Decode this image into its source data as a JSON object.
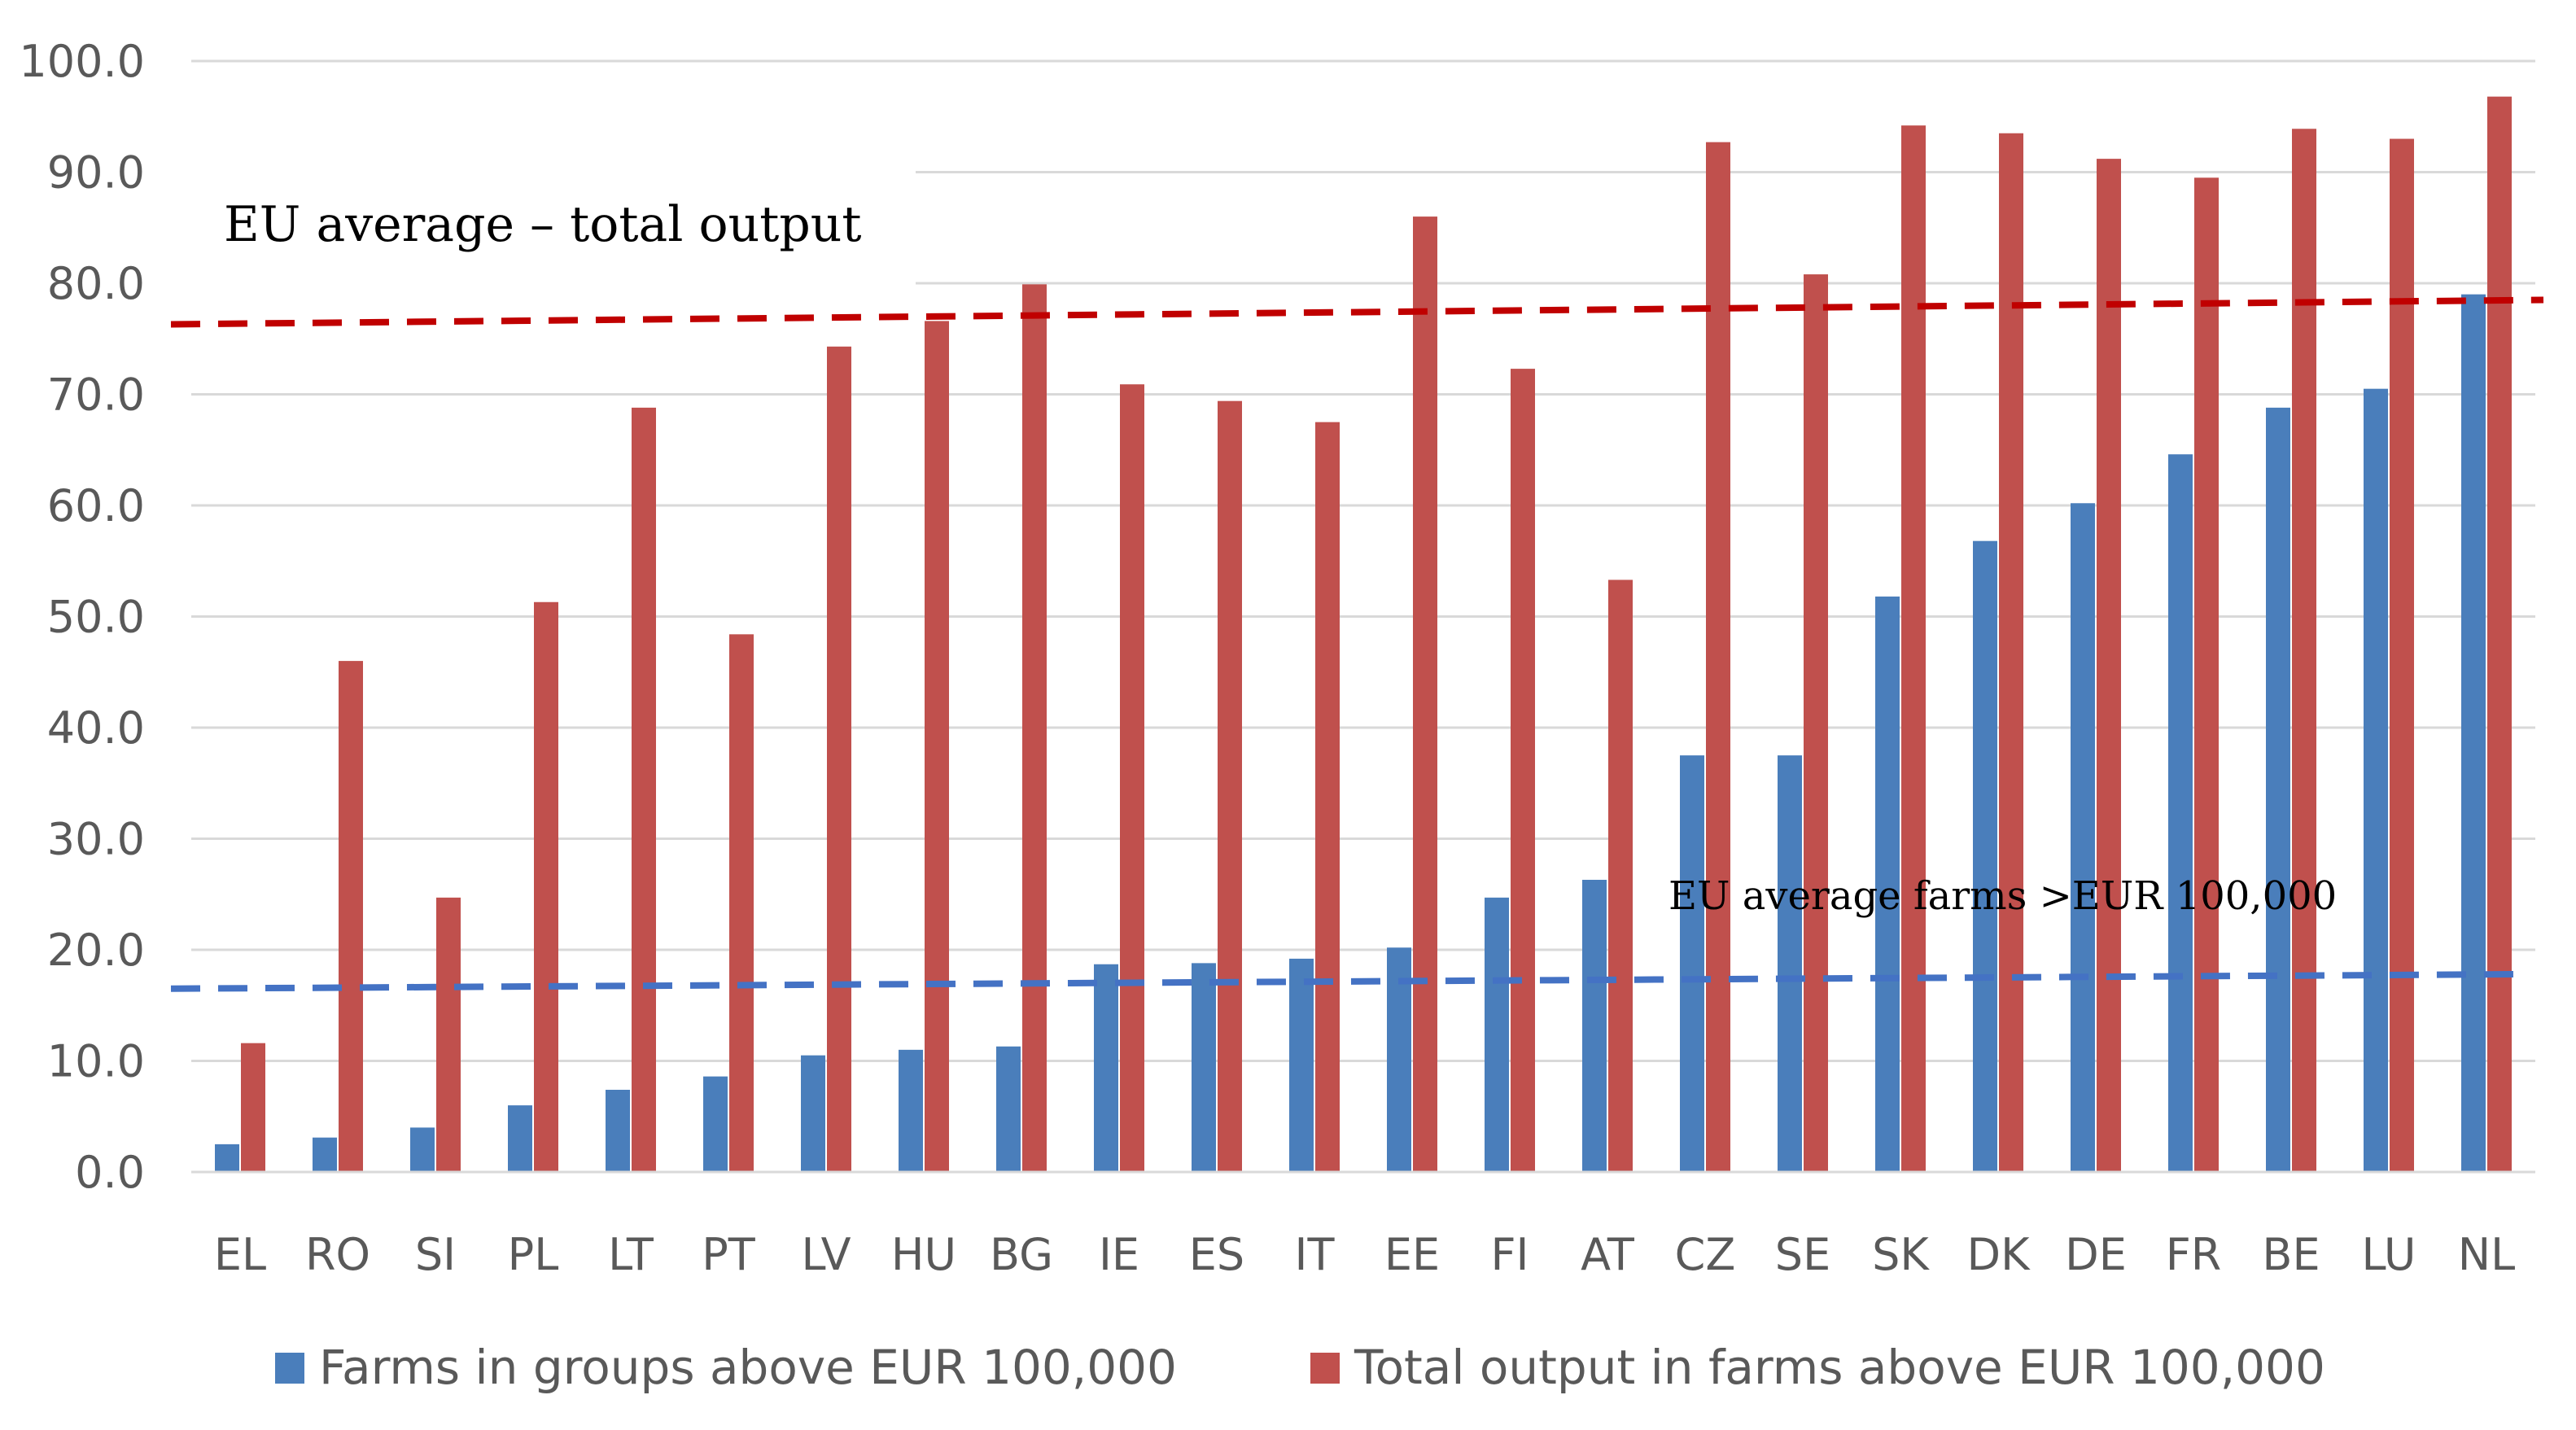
{
  "chart_data": {
    "type": "bar",
    "title": "",
    "xlabel": "",
    "ylabel": "",
    "ylim": [
      0,
      100
    ],
    "yticks": [
      0,
      10,
      20,
      30,
      40,
      50,
      60,
      70,
      80,
      90,
      100
    ],
    "ytick_labels": [
      "0.0",
      "10.0",
      "20.0",
      "30.0",
      "40.0",
      "50.0",
      "60.0",
      "70.0",
      "80.0",
      "90.0",
      "100.0"
    ],
    "gridlines": true,
    "legend_position": "bottom",
    "categories": [
      "EL",
      "RO",
      "SI",
      "PL",
      "LT",
      "PT",
      "LV",
      "HU",
      "BG",
      "IE",
      "ES",
      "IT",
      "EE",
      "FI",
      "AT",
      "CZ",
      "SE",
      "SK",
      "DK",
      "DE",
      "FR",
      "BE",
      "LU",
      "NL"
    ],
    "series": [
      {
        "name": "Farms in groups above EUR 100,000",
        "color": "#4a7ebb",
        "values": [
          2.5,
          3.1,
          4.0,
          6.0,
          7.4,
          8.6,
          10.5,
          11.0,
          11.3,
          18.7,
          18.8,
          19.2,
          20.2,
          24.7,
          26.3,
          37.5,
          37.5,
          51.8,
          56.8,
          60.2,
          64.6,
          68.8,
          70.5,
          79.0
        ]
      },
      {
        "name": "Total output  in farms above EUR 100,000",
        "color": "#c0504d",
        "values": [
          11.6,
          46.0,
          24.7,
          51.3,
          68.8,
          48.4,
          74.3,
          76.6,
          79.9,
          70.9,
          69.4,
          67.5,
          86.0,
          72.3,
          53.3,
          92.7,
          80.8,
          94.2,
          93.5,
          91.2,
          89.5,
          93.9,
          93.0,
          96.8
        ]
      }
    ],
    "reference_lines": [
      {
        "name": "EU average – total output",
        "color": "#c00000",
        "start_value": 76.3,
        "end_value": 78.5
      },
      {
        "name": "EU average farms >EUR 100,000",
        "color": "#4472c4",
        "start_value": 16.5,
        "end_value": 17.8
      }
    ],
    "annotations": [
      {
        "text": "EU average – total output"
      },
      {
        "text": "EU average farms >EUR 100,000"
      }
    ]
  }
}
